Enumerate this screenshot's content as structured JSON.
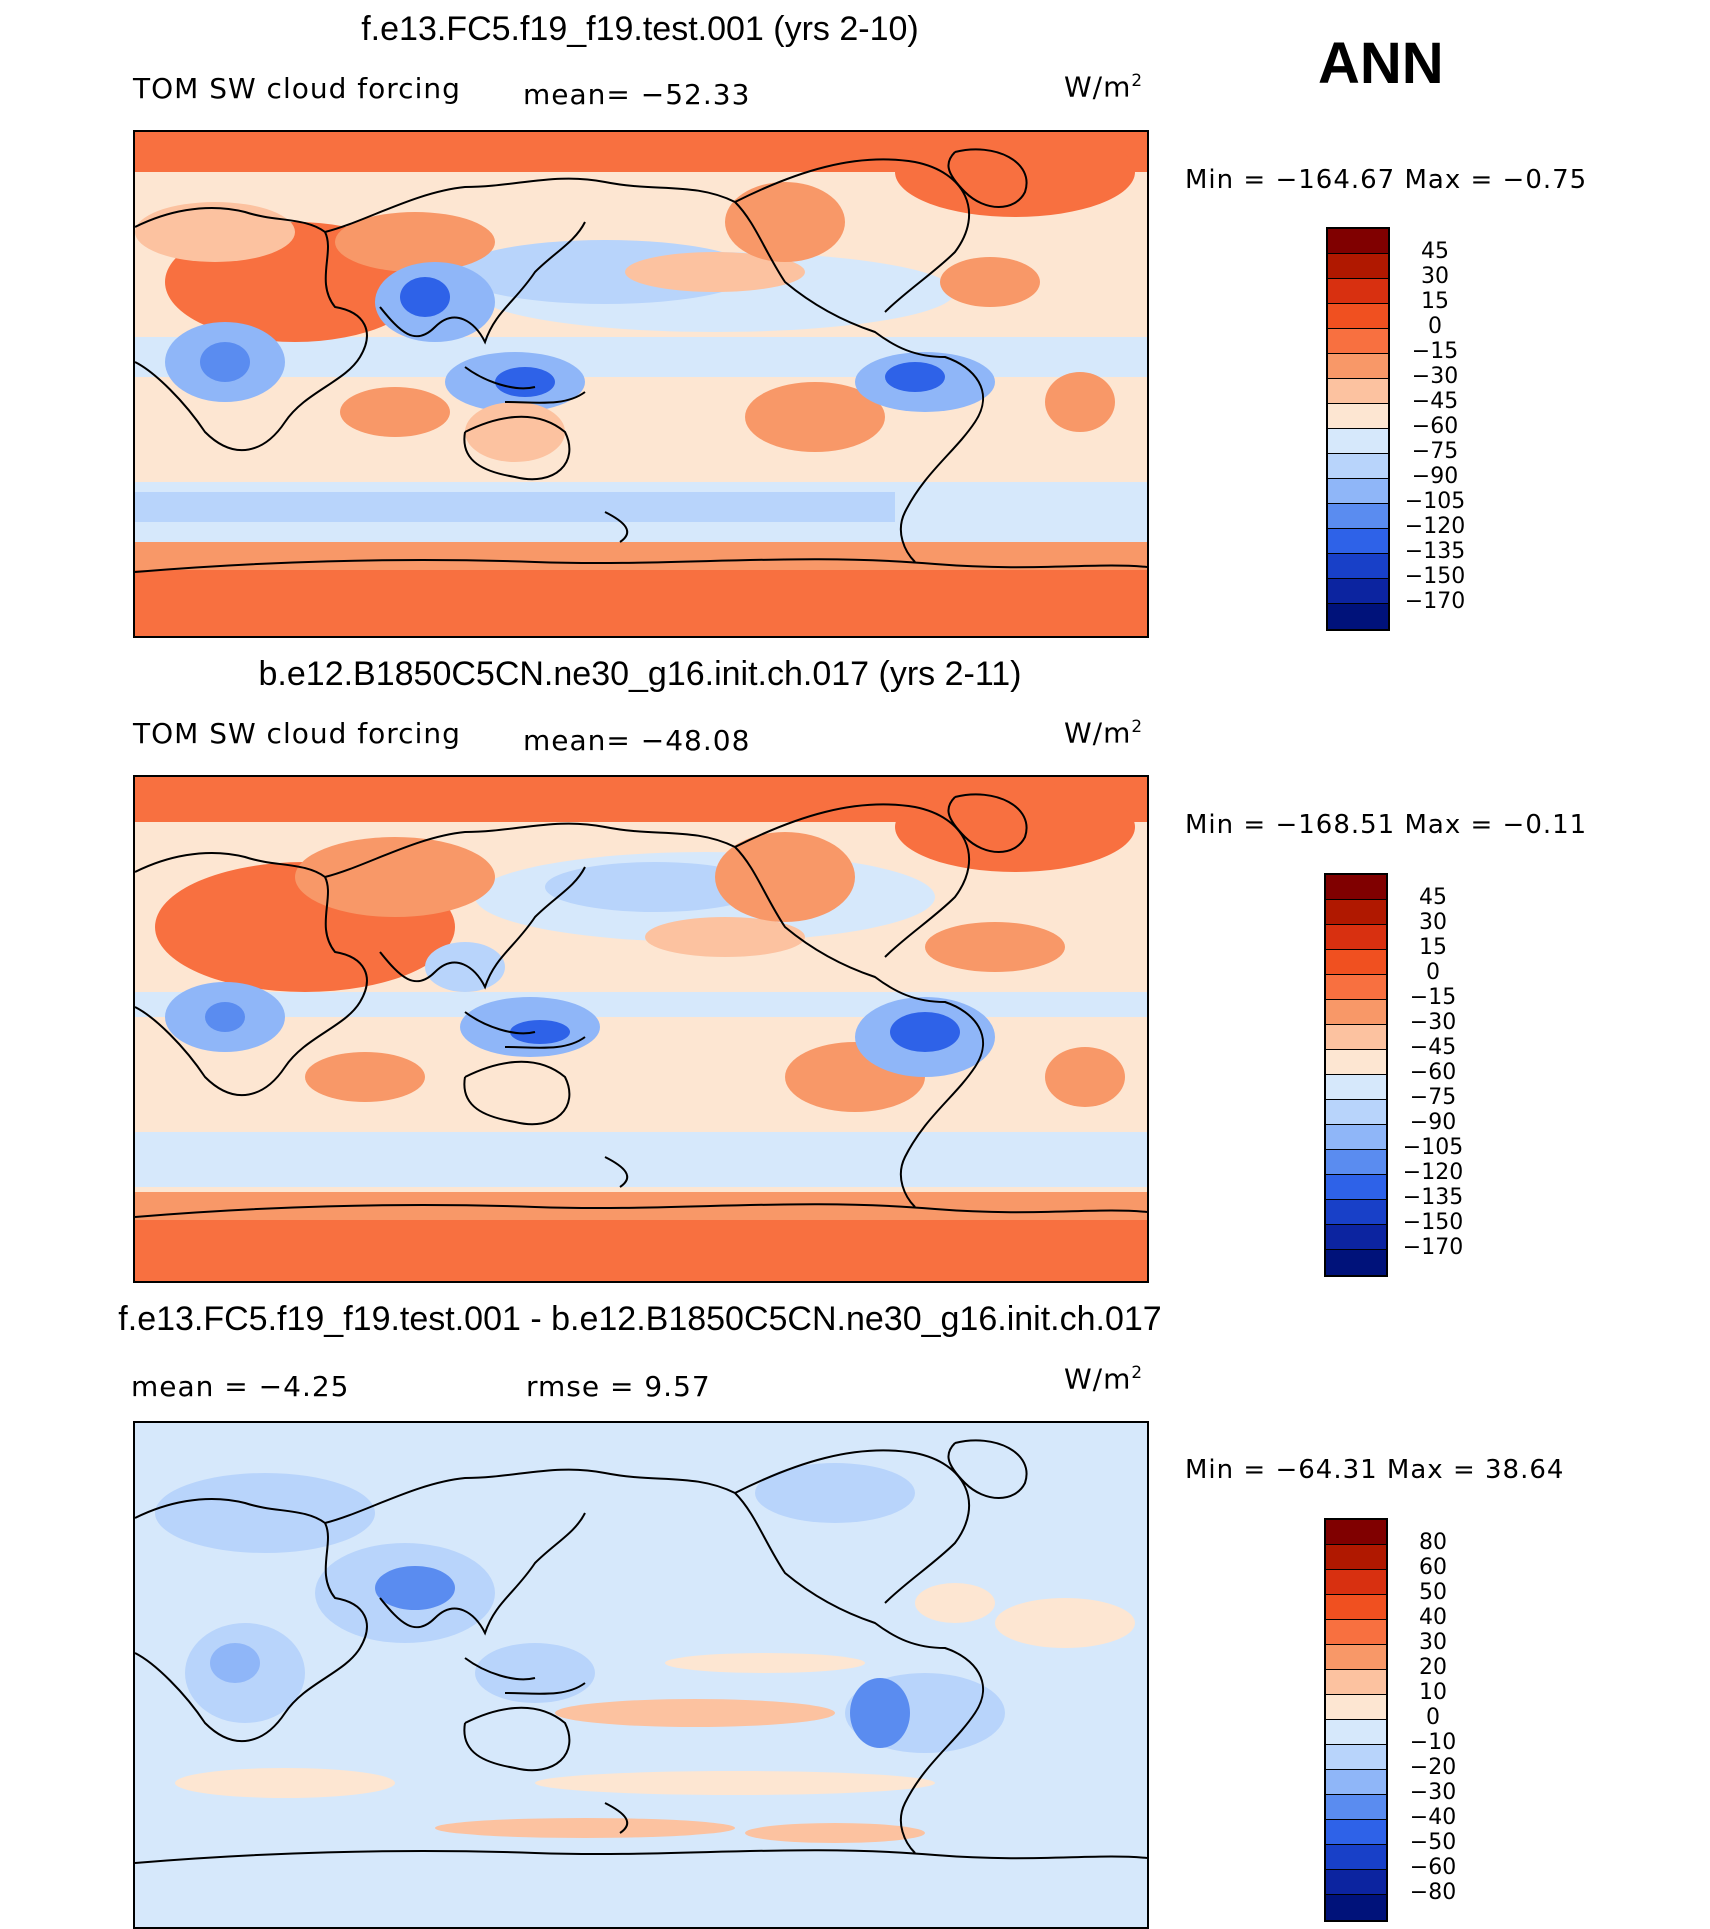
{
  "season": "ANN",
  "unit_prefix": "W/m",
  "unit_exp": "2",
  "panels": [
    {
      "title": "f.e13.FC5.f19_f19.test.001 (yrs 2-10)",
      "left_label": "TOM  SW  cloud  forcing",
      "mean_label": "mean=  −52.33",
      "minmax": "Min  =  −164.67  Max  =    −0.75",
      "levels": [
        "45",
        "30",
        "15",
        "0",
        "−15",
        "−30",
        "−45",
        "−60",
        "−75",
        "−90",
        "−105",
        "−120",
        "−135",
        "−150",
        "−170"
      ],
      "colors": [
        "#800000",
        "#b01800",
        "#d83010",
        "#f05020",
        "#f87040",
        "#f89868",
        "#fcc2a0",
        "#fde6d2",
        "#d6e8fb",
        "#b8d4fb",
        "#8fb6f8",
        "#5a8cf0",
        "#2e62e8",
        "#1840c8",
        "#0c24a0",
        "#00127a"
      ]
    },
    {
      "title": "b.e12.B1850C5CN.ne30_g16.init.ch.017 (yrs 2-11)",
      "left_label": "TOM  SW  cloud  forcing",
      "mean_label": "mean=  −48.08",
      "minmax": "Min  =  −168.51  Max  =    −0.11",
      "levels": [
        "45",
        "30",
        "15",
        "0",
        "−15",
        "−30",
        "−45",
        "−60",
        "−75",
        "−90",
        "−105",
        "−120",
        "−135",
        "−150",
        "−170"
      ],
      "colors": [
        "#800000",
        "#b01800",
        "#d83010",
        "#f05020",
        "#f87040",
        "#f89868",
        "#fcc2a0",
        "#fde6d2",
        "#d6e8fb",
        "#b8d4fb",
        "#8fb6f8",
        "#5a8cf0",
        "#2e62e8",
        "#1840c8",
        "#0c24a0",
        "#00127a"
      ]
    },
    {
      "title": "f.e13.FC5.f19_f19.test.001 - b.e12.B1850C5CN.ne30_g16.init.ch.017",
      "left_label": "mean  =     −4.25",
      "mean_label": "rmse  =       9.57",
      "minmax": "Min  =  −64.31  Max  =    38.64",
      "levels": [
        "80",
        "60",
        "50",
        "40",
        "30",
        "20",
        "10",
        "0",
        "−10",
        "−20",
        "−30",
        "−40",
        "−50",
        "−60",
        "−80"
      ],
      "colors": [
        "#800000",
        "#b01800",
        "#d83010",
        "#f05020",
        "#f87040",
        "#f89868",
        "#fcc2a0",
        "#fde6d2",
        "#d6e8fb",
        "#b8d4fb",
        "#8fb6f8",
        "#5a8cf0",
        "#2e62e8",
        "#1840c8",
        "#0c24a0",
        "#00127a"
      ]
    }
  ]
}
